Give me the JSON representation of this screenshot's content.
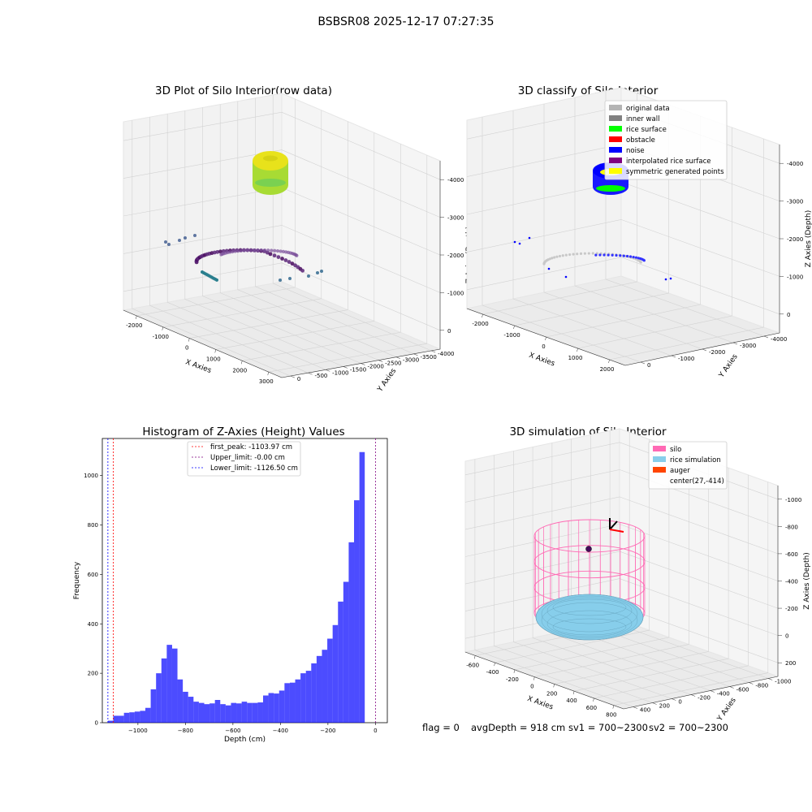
{
  "suptitle": "BSBSR08 2025-12-17 07:27:35",
  "panels": {
    "raw": {
      "title": "3D Plot of Silo Interior(row data)",
      "xlabel": "X Axies",
      "ylabel": "Y Axies",
      "zlabel": "Z Axies (Depth)",
      "xticks": [
        "-2000",
        "-1000",
        "0",
        "1000",
        "2000",
        "3000"
      ],
      "yticks": [
        "0",
        "-500",
        "-1000",
        "-1500",
        "-2000",
        "-2500",
        "-3000",
        "-3500",
        "-4000"
      ],
      "zticks": [
        "0",
        "-1000",
        "-2000",
        "-3000",
        "-4000"
      ],
      "colormap": "viridis"
    },
    "classify": {
      "title": "3D classify of Silo Interior",
      "xlabel": "X Axies",
      "ylabel": "Y Axies",
      "zlabel": "Z Axies (Depth)",
      "xticks": [
        "-2000",
        "-1000",
        "0",
        "1000",
        "2000"
      ],
      "yticks": [
        "0",
        "-1000",
        "-2000",
        "-3000",
        "-4000"
      ],
      "zticks": [
        "0",
        "-1000",
        "-2000",
        "-3000",
        "-4000"
      ],
      "legend": [
        {
          "label": "original data",
          "color": "#b4b4b4"
        },
        {
          "label": "inner wall",
          "color": "#808080"
        },
        {
          "label": "rice surface",
          "color": "#00ff00"
        },
        {
          "label": "obstacle",
          "color": "#ff0000"
        },
        {
          "label": "noise",
          "color": "#0000ff"
        },
        {
          "label": "interpolated rice surface",
          "color": "#800080"
        },
        {
          "label": "symmetric generated points",
          "color": "#ffff00"
        }
      ]
    },
    "sim": {
      "title": "3D simulation of Silo Interior",
      "xlabel": "X Axies",
      "ylabel": "Y Axies",
      "zlabel": "Z Axies (Depth)",
      "xticks": [
        "-600",
        "-400",
        "-200",
        "0",
        "200",
        "400",
        "600",
        "800"
      ],
      "yticks": [
        "400",
        "200",
        "0",
        "-200",
        "-400",
        "-600",
        "-800",
        "-1000"
      ],
      "zticks": [
        "200",
        "0",
        "-200",
        "-400",
        "-600",
        "-800",
        "-1000"
      ],
      "legend": [
        {
          "label": "silo",
          "color": "#ff69b4"
        },
        {
          "label": "rice simulation",
          "color": "#87ceeb"
        },
        {
          "label": "auger",
          "color": "#ff4500"
        },
        {
          "label": "center(27,-414)",
          "color": ""
        }
      ]
    }
  },
  "status": {
    "flag": "flag = 0",
    "avg_depth": "avgDepth = 918 cm",
    "sv1": "sv1 = 700~2300",
    "sv2": "sv2 = 700~2300"
  },
  "chart_data": [
    {
      "type": "histogram",
      "title": "Histogram of Z-Axies (Height) Values",
      "xlabel": "Depth (cm)",
      "ylabel": "Frequency",
      "bar_color": "#0000ff",
      "xlim": [
        -1150,
        50
      ],
      "ylim": [
        0,
        1150
      ],
      "xticks": [
        -1000,
        -800,
        -600,
        -400,
        -200,
        0
      ],
      "yticks": [
        0,
        200,
        400,
        600,
        800,
        1000
      ],
      "bin_edges_start": -1126.5,
      "bin_width": 22.53,
      "values": [
        8,
        28,
        28,
        40,
        42,
        45,
        48,
        60,
        135,
        200,
        260,
        315,
        300,
        175,
        125,
        105,
        85,
        80,
        75,
        78,
        92,
        75,
        70,
        80,
        78,
        85,
        80,
        80,
        82,
        110,
        120,
        118,
        130,
        160,
        162,
        175,
        200,
        210,
        240,
        270,
        295,
        340,
        395,
        490,
        570,
        730,
        900,
        1095
      ],
      "vlines": [
        {
          "label": "first_peak: -1103.97 cm",
          "x": -1103.97,
          "color": "#ff0000"
        },
        {
          "label": "Upper_limit: -0.00 cm",
          "x": -0.0,
          "color": "#800080"
        },
        {
          "label": "Lower_limit: -1126.50 cm",
          "x": -1126.5,
          "color": "#0000ff"
        }
      ]
    }
  ]
}
